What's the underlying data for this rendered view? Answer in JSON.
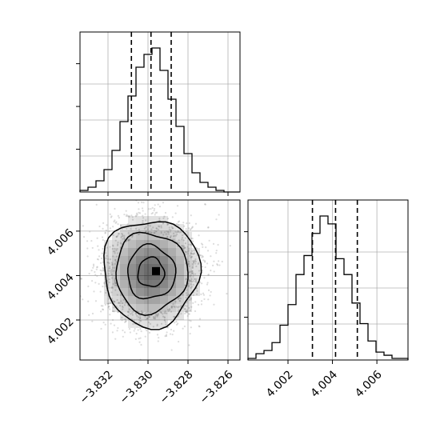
{
  "chart_data": [
    {
      "type": "histogram",
      "panel": "top-left",
      "xlim": [
        -3.8334,
        -3.8254
      ],
      "bin_edges": [
        -3.8334,
        -3.833,
        -3.8326,
        -3.8322,
        -3.8318,
        -3.8314,
        -3.831,
        -3.8306,
        -3.8302,
        -3.8298,
        -3.8294,
        -3.829,
        -3.8286,
        -3.8282,
        -3.8278,
        -3.8274,
        -3.827,
        -3.8266,
        -3.8262,
        -3.8258,
        -3.8254
      ],
      "counts": [
        1,
        3,
        7,
        14,
        26,
        44,
        60,
        78,
        86,
        90,
        76,
        58,
        41,
        24,
        12,
        6,
        3,
        1,
        0,
        0
      ],
      "quantile_lines": [
        -3.83083,
        -3.82985,
        -3.82884
      ],
      "grid": true
    },
    {
      "type": "histogram",
      "panel": "bottom-right",
      "xlim": [
        4.0002,
        4.0074
      ],
      "xticks": [
        4.002,
        4.004,
        4.006
      ],
      "xtick_labels": [
        "4.002",
        "4.004",
        "4.006"
      ],
      "bin_edges": [
        4.0002,
        4.00056,
        4.00092,
        4.00128,
        4.00164,
        4.002,
        4.00236,
        4.00272,
        4.00308,
        4.00344,
        4.0038,
        4.00416,
        4.00452,
        4.00488,
        4.00524,
        4.0056,
        4.00596,
        4.00632,
        4.00668,
        4.00704,
        4.0074
      ],
      "counts": [
        1,
        4,
        6,
        11,
        22,
        35,
        54,
        66,
        80,
        91,
        86,
        64,
        54,
        36,
        23,
        12,
        5,
        3,
        1,
        1
      ],
      "quantile_lines": [
        4.0031,
        4.00414,
        4.00512
      ],
      "grid": true
    },
    {
      "type": "2d-histogram",
      "panel": "bottom-left",
      "xlim": [
        -3.8334,
        -3.8254
      ],
      "ylim": [
        4.0002,
        4.0074
      ],
      "xticks": [
        -3.832,
        -3.83,
        -3.828,
        -3.826
      ],
      "xtick_labels": [
        "−3.832",
        "−3.830",
        "−3.828",
        "−3.826"
      ],
      "yticks": [
        4.002,
        4.004,
        4.006
      ],
      "ytick_labels": [
        "4.002",
        "4.004",
        "4.006"
      ],
      "center": [
        -3.82985,
        4.00414
      ],
      "sigma": [
        0.0012,
        0.0012
      ],
      "peak_bin": [
        -3.8296,
        4.0042
      ],
      "contour_levels": [
        "0.5-sigma",
        "1-sigma",
        "1.5-sigma",
        "2-sigma"
      ],
      "grid": true
    }
  ],
  "colors": {
    "line": "#000000",
    "grid": "#b0b0b0",
    "points": "#9a9a9a",
    "shade": "#000000"
  }
}
